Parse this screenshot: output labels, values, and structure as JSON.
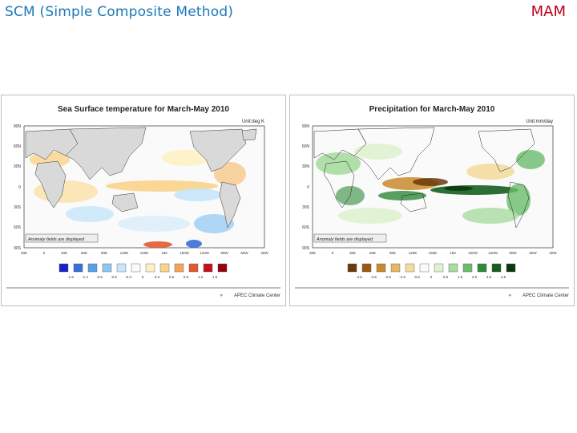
{
  "slide": {
    "title": "SCM (Simple Composite Method)",
    "season": "MAM"
  },
  "panels": [
    {
      "title": "Sea Surface temperature for March-May 2010",
      "unit": "Unit:deg K",
      "note": "Anomaly fields are displayed",
      "lat_labels": [
        "90N",
        "60N",
        "30N",
        "0",
        "30S",
        "60S",
        "90S"
      ],
      "lon_labels": [
        "30E",
        "0",
        "30E",
        "60E",
        "90E",
        "120E",
        "150E",
        "180",
        "150W",
        "120W",
        "90W",
        "60W",
        "30W"
      ],
      "legend_labels": [
        "-1.5",
        "-1.2",
        "-0.9",
        "-0.6",
        "-0.3",
        "0",
        "0.3",
        "0.6",
        "0.9",
        "1.2",
        "1.5"
      ],
      "legend_colors": [
        "#1a20c8",
        "#3a6ed8",
        "#5aa0e8",
        "#8ec6f2",
        "#c6e6fa",
        "#fbfbfb",
        "#fdf1c4",
        "#fbd38a",
        "#f4a35a",
        "#e05a2e",
        "#c8101a",
        "#9a0010"
      ],
      "credit": "APEC Climate Center"
    },
    {
      "title": "Precipitation for March-May 2010",
      "unit": "Unit:mm/day",
      "note": "Anomaly fields are displayed",
      "lat_labels": [
        "90N",
        "60N",
        "30N",
        "0",
        "30S",
        "60S",
        "90S"
      ],
      "lon_labels": [
        "30E",
        "0",
        "30E",
        "60E",
        "90E",
        "120E",
        "150E",
        "180",
        "150W",
        "120W",
        "90W",
        "60W",
        "30W"
      ],
      "legend_labels": [
        "-4.5",
        "-3.5",
        "-2.5",
        "-1.5",
        "-0.5",
        "0",
        "0.5",
        "1.5",
        "2.5",
        "3.5",
        "4.5"
      ],
      "legend_colors": [
        "#6a3a08",
        "#9a5a14",
        "#c88a2a",
        "#e4b860",
        "#f4dca0",
        "#fbfbfb",
        "#dff2d0",
        "#a8dca0",
        "#6cbc6c",
        "#2e8a3a",
        "#155e20",
        "#083a10"
      ],
      "credit": "APEC Climate Center"
    }
  ]
}
